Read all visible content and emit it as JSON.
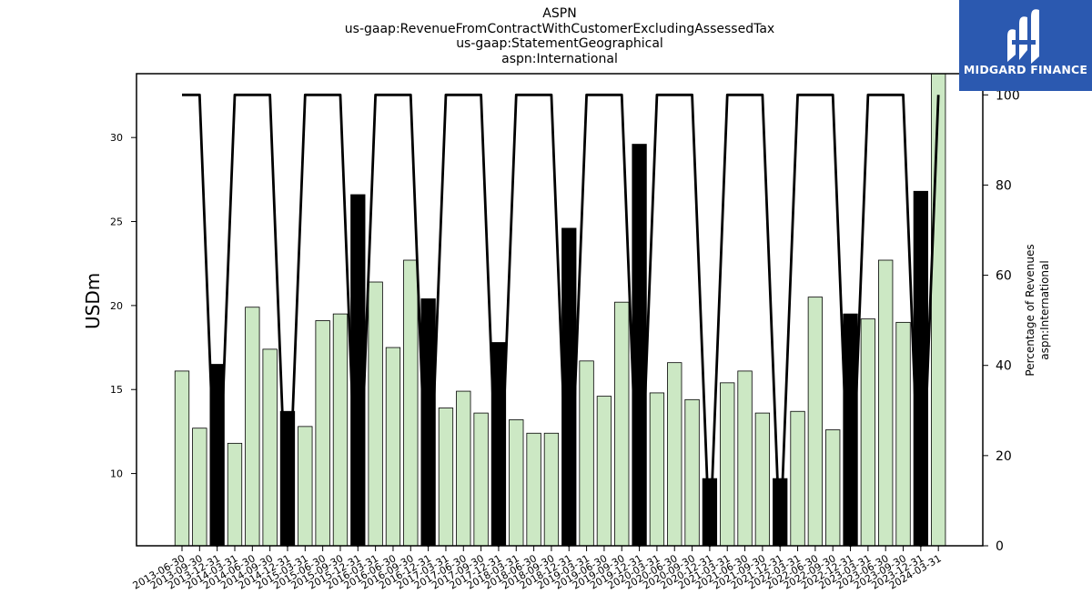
{
  "title_lines": [
    "ASPN",
    "us-gaap:RevenueFromContractWithCustomerExcludingAssessedTax",
    "us-gaap:StatementGeographical",
    "aspn:International"
  ],
  "logo": {
    "text": "MIDGARD FINANCE",
    "bg_color": "#2b59b0"
  },
  "chart_data": {
    "type": "bar",
    "title": "ASPN us-gaap:RevenueFromContractWithCustomerExcludingAssessedTax us-gaap:StatementGeographical aspn:International",
    "ylabel": "USDm",
    "y2label_lines": [
      "Percentage of Revenues",
      "aspn:International"
    ],
    "ylim": [
      5.7,
      33.8
    ],
    "y2lim": [
      0,
      104.7
    ],
    "yticks": [
      10,
      15,
      20,
      25,
      30
    ],
    "y2ticks": [
      0,
      20,
      40,
      60,
      80,
      100
    ],
    "bar_color_default": "#cce8c4",
    "bar_color_q4": "#000000",
    "line_color": "#000000",
    "grid": false,
    "categories": [
      "2013-06-30",
      "2013-09-30",
      "2013-12-31",
      "2014-03-31",
      "2014-06-30",
      "2014-09-30",
      "2014-12-31",
      "2015-03-31",
      "2015-06-30",
      "2015-09-30",
      "2015-12-31",
      "2016-03-31",
      "2016-06-30",
      "2016-09-30",
      "2016-12-31",
      "2017-03-31",
      "2017-06-30",
      "2017-09-30",
      "2017-12-31",
      "2018-03-31",
      "2018-06-30",
      "2018-09-30",
      "2018-12-31",
      "2019-03-31",
      "2019-06-30",
      "2019-09-30",
      "2019-12-31",
      "2020-03-31",
      "2020-06-30",
      "2020-09-30",
      "2020-12-31",
      "2021-03-31",
      "2021-06-30",
      "2021-09-30",
      "2021-12-31",
      "2022-03-31",
      "2022-06-30",
      "2022-09-30",
      "2022-12-31",
      "2023-03-31",
      "2023-06-30",
      "2023-09-30",
      "2023-12-31",
      "2024-03-31"
    ],
    "series": [
      {
        "kind": "bar",
        "values": [
          16.1,
          12.7,
          16.5,
          11.8,
          19.9,
          17.4,
          13.7,
          12.8,
          19.1,
          19.5,
          26.6,
          21.4,
          17.5,
          22.7,
          20.4,
          13.9,
          14.9,
          13.6,
          17.8,
          13.2,
          12.4,
          12.4,
          24.6,
          16.7,
          14.6,
          20.2,
          29.6,
          14.8,
          16.6,
          14.4,
          9.7,
          15.4,
          16.1,
          13.6,
          9.7,
          13.7,
          20.5,
          12.6,
          19.5,
          19.2,
          22.7,
          19.0,
          26.8,
          33.8
        ],
        "q4_flags": [
          false,
          false,
          true,
          false,
          false,
          false,
          true,
          false,
          false,
          false,
          true,
          false,
          false,
          false,
          true,
          false,
          false,
          false,
          true,
          false,
          false,
          false,
          true,
          false,
          false,
          false,
          true,
          false,
          false,
          false,
          true,
          false,
          false,
          false,
          true,
          false,
          false,
          false,
          true,
          false,
          false,
          false,
          true,
          false
        ]
      },
      {
        "kind": "line",
        "axis": "right",
        "values": [
          100,
          100,
          0,
          100,
          100,
          100,
          0,
          100,
          100,
          100,
          0,
          100,
          100,
          100,
          0,
          100,
          100,
          100,
          0,
          100,
          100,
          100,
          0,
          100,
          100,
          100,
          0,
          100,
          100,
          100,
          0,
          100,
          100,
          100,
          0,
          100,
          100,
          100,
          0,
          100,
          100,
          100,
          0,
          100
        ]
      }
    ]
  }
}
